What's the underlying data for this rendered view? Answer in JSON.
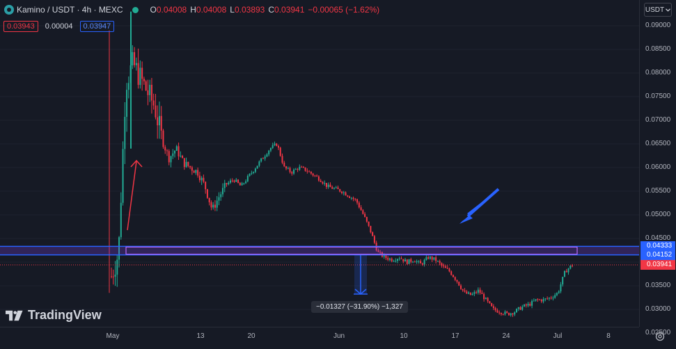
{
  "legend": {
    "symbol": "Kamino / USDT · 4h · MEXC",
    "open_key": "O",
    "open": "0.04008",
    "high_key": "H",
    "high": "0.04008",
    "low_key": "L",
    "low": "0.03893",
    "close_key": "C",
    "close": "0.03941",
    "change": "−0.00065 (−1.62%)"
  },
  "quote": {
    "bid": "0.03943",
    "spread": "0.00004",
    "ask": "0.03947"
  },
  "currency_button": "USDT",
  "watermark": "TradingView",
  "measure_label": "−0.01327 (−31.90%) −1,327",
  "price_axis": {
    "ticks": [
      "0.09000",
      "0.08500",
      "0.08000",
      "0.07500",
      "0.07000",
      "0.06500",
      "0.06000",
      "0.05500",
      "0.05000",
      "0.04500",
      "0.03500",
      "0.03000",
      "0.02500"
    ],
    "labels": [
      {
        "text": "0.04333",
        "color": "#2962FF"
      },
      {
        "text": "0.04152",
        "color": "#2962FF"
      },
      {
        "text": "0.03941",
        "color": "#F23645"
      }
    ]
  },
  "time_axis": {
    "ticks": [
      "May",
      "13",
      "20",
      "Jun",
      "10",
      "17",
      "24",
      "Jul",
      "8"
    ]
  },
  "colors": {
    "up": "#22AB94",
    "down": "#F23645",
    "accent": "#2962FF",
    "zone": "#7B3FE4",
    "background": "#161A25"
  },
  "chart_data": {
    "type": "candlestick",
    "symbol": "Kamino / USDT",
    "interval": "4h",
    "ylim": [
      0.0235,
      0.0935
    ],
    "x": [
      "May",
      "13",
      "20",
      "Jun",
      "10",
      "17",
      "24",
      "Jul",
      "8"
    ],
    "close_path": [
      [
        0.0,
        0.037
      ],
      [
        0.5,
        0.042
      ],
      [
        1.0,
        0.078
      ],
      [
        1.5,
        0.082
      ],
      [
        2.0,
        0.079
      ],
      [
        2.5,
        0.076
      ],
      [
        3.0,
        0.073
      ],
      [
        3.5,
        0.066
      ],
      [
        4.0,
        0.062
      ],
      [
        4.5,
        0.064
      ],
      [
        5.0,
        0.061
      ],
      [
        5.5,
        0.06
      ],
      [
        6.0,
        0.059
      ],
      [
        6.5,
        0.056
      ],
      [
        7.0,
        0.051
      ],
      [
        7.5,
        0.054
      ],
      [
        8.0,
        0.0565
      ],
      [
        8.5,
        0.0575
      ],
      [
        9.0,
        0.056
      ],
      [
        9.5,
        0.058
      ],
      [
        10.0,
        0.06
      ],
      [
        10.5,
        0.062
      ],
      [
        11.0,
        0.064
      ],
      [
        11.5,
        0.065
      ],
      [
        12.0,
        0.06
      ],
      [
        12.5,
        0.059
      ],
      [
        13.0,
        0.06
      ],
      [
        13.5,
        0.0595
      ],
      [
        14.0,
        0.0585
      ],
      [
        14.5,
        0.0575
      ],
      [
        15.0,
        0.056
      ],
      [
        15.5,
        0.0555
      ],
      [
        16.0,
        0.055
      ],
      [
        16.5,
        0.054
      ],
      [
        17.0,
        0.053
      ],
      [
        17.5,
        0.05
      ],
      [
        18.0,
        0.0465
      ],
      [
        18.5,
        0.042
      ],
      [
        19.0,
        0.041
      ],
      [
        19.5,
        0.0405
      ],
      [
        20.0,
        0.041
      ],
      [
        20.5,
        0.04
      ],
      [
        21.0,
        0.0405
      ],
      [
        21.5,
        0.0395
      ],
      [
        22.0,
        0.041
      ],
      [
        22.5,
        0.0405
      ],
      [
        23.0,
        0.039
      ],
      [
        23.5,
        0.038
      ],
      [
        24.0,
        0.036
      ],
      [
        24.5,
        0.0335
      ],
      [
        25.0,
        0.033
      ],
      [
        25.5,
        0.034
      ],
      [
        26.0,
        0.032
      ],
      [
        26.5,
        0.03
      ],
      [
        27.0,
        0.0295
      ],
      [
        27.5,
        0.029
      ],
      [
        28.0,
        0.0295
      ],
      [
        28.5,
        0.0305
      ],
      [
        29.0,
        0.031
      ],
      [
        29.5,
        0.032
      ],
      [
        30.0,
        0.032
      ],
      [
        30.5,
        0.0325
      ],
      [
        31.0,
        0.0335
      ],
      [
        31.5,
        0.038
      ],
      [
        32.0,
        0.0394
      ]
    ],
    "horizontal_lines": [
      0.04333,
      0.04152
    ],
    "last_price": 0.03941,
    "measure": {
      "change": "−0.01327",
      "percent": "−31.90%",
      "ticks": "−1,327"
    }
  }
}
